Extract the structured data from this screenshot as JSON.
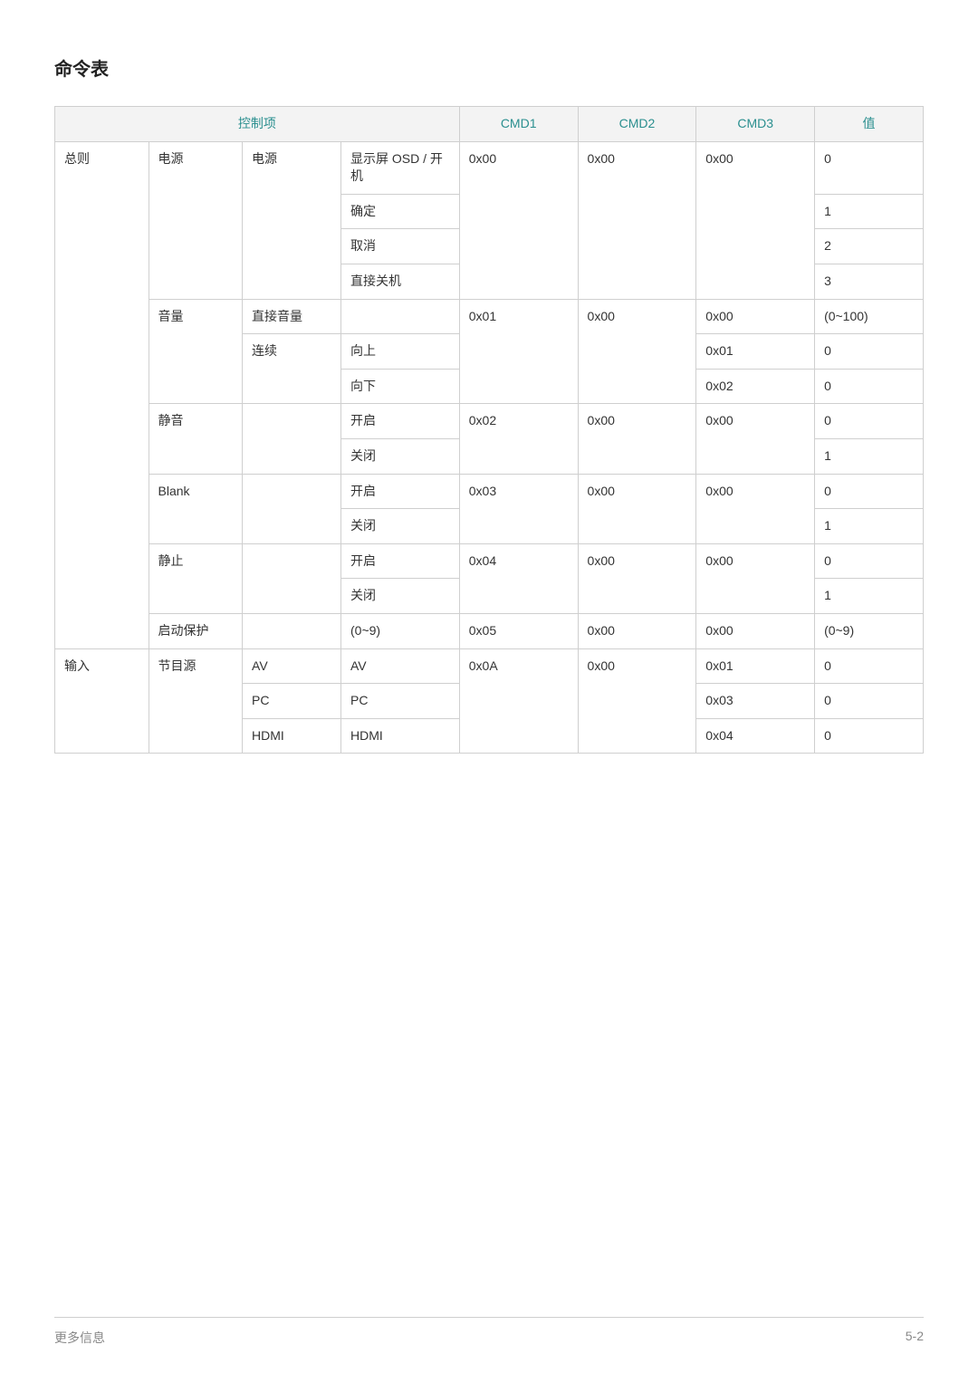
{
  "title": "命令表",
  "headers": {
    "control": "控制项",
    "cmd1": "CMD1",
    "cmd2": "CMD2",
    "cmd3": "CMD3",
    "value": "值"
  },
  "rows": {
    "r1": {
      "c1": "总则",
      "c2": "电源",
      "c3": "电源",
      "c4": "显示屏 OSD / 开机",
      "cmd1": "0x00",
      "cmd2": "0x00",
      "cmd3": "0x00",
      "val": "0"
    },
    "r2": {
      "c4": "确定",
      "val": "1"
    },
    "r3": {
      "c4": "取消",
      "val": "2"
    },
    "r4": {
      "c4": "直接关机",
      "val": "3"
    },
    "r5": {
      "c2": "音量",
      "c3": "直接音量",
      "c4": "",
      "cmd1": "0x01",
      "cmd2": "0x00",
      "cmd3": "0x00",
      "val": "(0~100)"
    },
    "r6": {
      "c3": "连续",
      "c4": "向上",
      "cmd3": "0x01",
      "val": "0"
    },
    "r7": {
      "c4": "向下",
      "cmd3": "0x02",
      "val": "0"
    },
    "r8": {
      "c2": "静音",
      "c3": "",
      "c4": "开启",
      "cmd1": "0x02",
      "cmd2": "0x00",
      "cmd3": "0x00",
      "val": "0"
    },
    "r9": {
      "c4": "关闭",
      "val": "1"
    },
    "r10": {
      "c2": "Blank",
      "c3": "",
      "c4": "开启",
      "cmd1": "0x03",
      "cmd2": "0x00",
      "cmd3": "0x00",
      "val": "0"
    },
    "r11": {
      "c4": "关闭",
      "val": "1"
    },
    "r12": {
      "c2": "静止",
      "c3": "",
      "c4": "开启",
      "cmd1": "0x04",
      "cmd2": "0x00",
      "cmd3": "0x00",
      "val": "0"
    },
    "r13": {
      "c4": "关闭",
      "val": "1"
    },
    "r14": {
      "c2": "启动保护",
      "c3": "",
      "c4": "(0~9)",
      "cmd1": "0x05",
      "cmd2": "0x00",
      "cmd3": "0x00",
      "val": "(0~9)"
    },
    "r15": {
      "c1": "输入",
      "c2": "节目源",
      "c3": "AV",
      "c4": "AV",
      "cmd1": "0x0A",
      "cmd2": "0x00",
      "cmd3": "0x01",
      "val": "0"
    },
    "r16": {
      "c3": "PC",
      "c4": "PC",
      "cmd3": "0x03",
      "val": "0"
    },
    "r17": {
      "c3": "HDMI",
      "c4": "HDMI",
      "cmd3": "0x04",
      "val": "0"
    }
  },
  "footer": {
    "left": "更多信息",
    "right": "5-2"
  },
  "colors": {
    "header_bg": "#f3f3f3",
    "header_text": "#2a8f8f",
    "border": "#cfcfcf",
    "body_text": "#333333",
    "footer_text": "#888888",
    "background": "#ffffff"
  }
}
